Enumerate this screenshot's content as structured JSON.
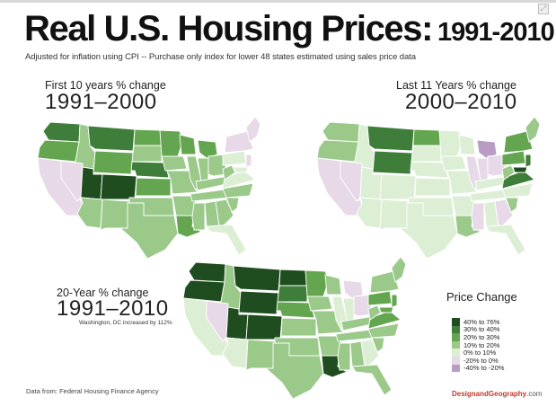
{
  "title": {
    "main": "Real U.S. Housing Prices:",
    "years": "1991-2010"
  },
  "subtitle": "Adjusted for inflation using CPI -- Purchase only index for lower 48 states estimated using sales price data",
  "maps": [
    {
      "label": "First 10 years % change",
      "period": "1991–2000",
      "note": ""
    },
    {
      "label": "Last 11 Years % change",
      "period": "2000–2010",
      "note": ""
    },
    {
      "label": "20-Year % change",
      "period": "1991–2010",
      "note": "Washington, DC increased by 112%"
    }
  ],
  "legend": {
    "title": "Price Change",
    "items": [
      {
        "label": "40% to 76%",
        "color": "#1f4d1f"
      },
      {
        "label": "30% to 40%",
        "color": "#3f7d3a"
      },
      {
        "label": "20% to 30%",
        "color": "#64a64f"
      },
      {
        "label": "10% to 20%",
        "color": "#9ac98a"
      },
      {
        "label": "0% to 10%",
        "color": "#dcefd5"
      },
      {
        "label": "-20% to 0%",
        "color": "#e7d9e8"
      },
      {
        "label": "-40% to -20%",
        "color": "#b89cc4"
      }
    ]
  },
  "source": "Data from:  Federal Housing Finance Agency",
  "brand": {
    "part1": "DesignandGeography",
    "part2": ".com"
  },
  "colors": {
    "background": "#ffffff",
    "state_border": "#ffffff",
    "text": "#222222"
  }
}
